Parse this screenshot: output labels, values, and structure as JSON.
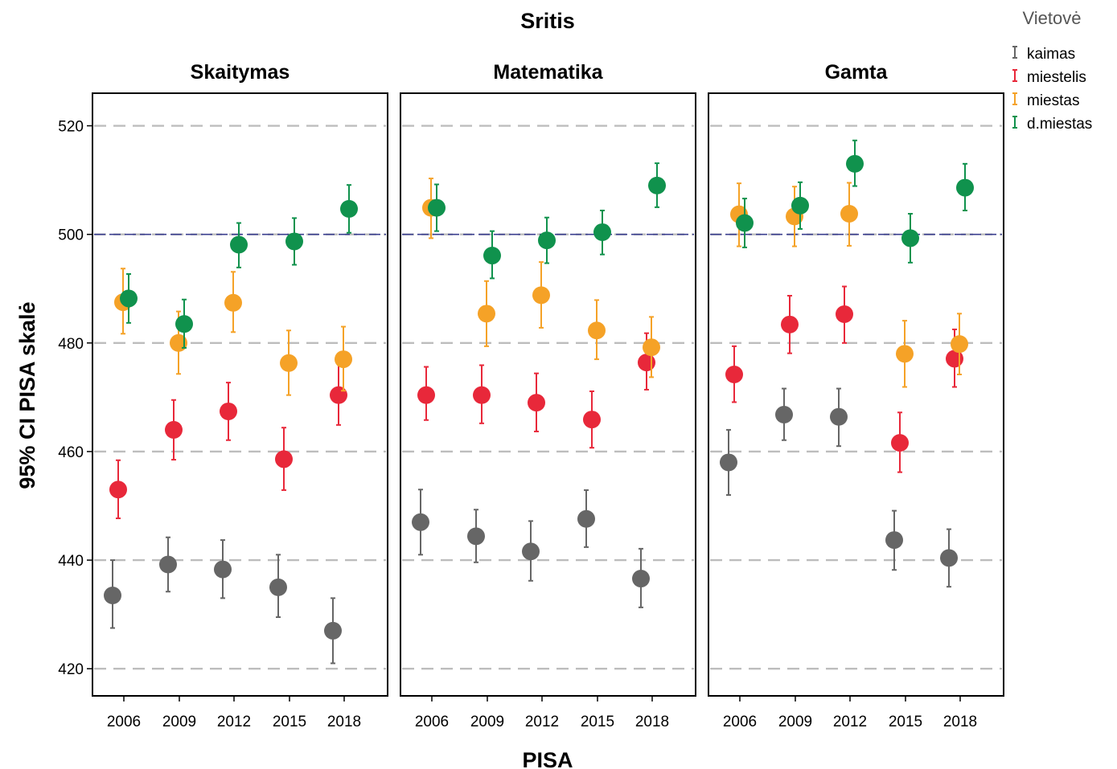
{
  "chart_data": {
    "type": "scatter",
    "title": "Sritis",
    "xlabel": "PISA",
    "ylabel": "95% CI PISA skalė",
    "ylim": [
      415,
      526
    ],
    "yticks": [
      420,
      440,
      460,
      480,
      500,
      520
    ],
    "x_categories": [
      "2006",
      "2009",
      "2012",
      "2015",
      "2018"
    ],
    "reference_line": 500,
    "grid": "horizontal dashed",
    "legend": {
      "title": "Vietovė",
      "placement": "top-right",
      "entries": [
        {
          "name": "kaimas",
          "color": "#666666"
        },
        {
          "name": "miestelis",
          "color": "#e8283a"
        },
        {
          "name": "miestas",
          "color": "#f5a227"
        },
        {
          "name": "d.miestas",
          "color": "#10924d"
        }
      ]
    },
    "panels": [
      {
        "title": "Skaitymas",
        "series": [
          {
            "name": "kaimas",
            "points": [
              {
                "year": "2006",
                "mean": 433.5,
                "low": 427.5,
                "high": 440
              },
              {
                "year": "2009",
                "mean": 439.2,
                "low": 434.2,
                "high": 444.2
              },
              {
                "year": "2012",
                "mean": 438.3,
                "low": 433,
                "high": 443.7
              },
              {
                "year": "2015",
                "mean": 435,
                "low": 429.5,
                "high": 441
              },
              {
                "year": "2018",
                "mean": 427,
                "low": 421,
                "high": 433
              }
            ]
          },
          {
            "name": "miestelis",
            "points": [
              {
                "year": "2006",
                "mean": 453,
                "low": 447.7,
                "high": 458.4
              },
              {
                "year": "2009",
                "mean": 464,
                "low": 458.5,
                "high": 469.5
              },
              {
                "year": "2012",
                "mean": 467.4,
                "low": 462.1,
                "high": 472.7
              },
              {
                "year": "2015",
                "mean": 458.6,
                "low": 452.9,
                "high": 464.4
              },
              {
                "year": "2018",
                "mean": 470.4,
                "low": 464.9,
                "high": 476.3
              }
            ]
          },
          {
            "name": "miestas",
            "points": [
              {
                "year": "2006",
                "mean": 487.5,
                "low": 481.7,
                "high": 493.7
              },
              {
                "year": "2009",
                "mean": 480,
                "low": 474.3,
                "high": 485.8
              },
              {
                "year": "2012",
                "mean": 487.4,
                "low": 482,
                "high": 493.1
              },
              {
                "year": "2015",
                "mean": 476.3,
                "low": 470.4,
                "high": 482.3
              },
              {
                "year": "2018",
                "mean": 477,
                "low": 471.2,
                "high": 483
              }
            ]
          },
          {
            "name": "d.miestas",
            "points": [
              {
                "year": "2006",
                "mean": 488.2,
                "low": 483.7,
                "high": 492.7
              },
              {
                "year": "2009",
                "mean": 483.5,
                "low": 479.1,
                "high": 488
              },
              {
                "year": "2012",
                "mean": 498.1,
                "low": 493.9,
                "high": 502.1
              },
              {
                "year": "2015",
                "mean": 498.7,
                "low": 494.4,
                "high": 503
              },
              {
                "year": "2018",
                "mean": 504.7,
                "low": 500.3,
                "high": 509.1
              }
            ]
          }
        ]
      },
      {
        "title": "Matematika",
        "series": [
          {
            "name": "kaimas",
            "points": [
              {
                "year": "2006",
                "mean": 447,
                "low": 441,
                "high": 453
              },
              {
                "year": "2009",
                "mean": 444.4,
                "low": 439.6,
                "high": 449.3
              },
              {
                "year": "2012",
                "mean": 441.6,
                "low": 436.2,
                "high": 447.2
              },
              {
                "year": "2015",
                "mean": 447.6,
                "low": 442.4,
                "high": 452.9
              },
              {
                "year": "2018",
                "mean": 436.6,
                "low": 431.3,
                "high": 442.1
              }
            ]
          },
          {
            "name": "miestelis",
            "points": [
              {
                "year": "2006",
                "mean": 470.4,
                "low": 465.8,
                "high": 475.6
              },
              {
                "year": "2009",
                "mean": 470.4,
                "low": 465.2,
                "high": 475.9
              },
              {
                "year": "2012",
                "mean": 469,
                "low": 463.7,
                "high": 474.4
              },
              {
                "year": "2015",
                "mean": 465.9,
                "low": 460.7,
                "high": 471.1
              },
              {
                "year": "2018",
                "mean": 476.4,
                "low": 471.4,
                "high": 481.8
              }
            ]
          },
          {
            "name": "miestas",
            "points": [
              {
                "year": "2006",
                "mean": 504.9,
                "low": 499.3,
                "high": 510.3
              },
              {
                "year": "2009",
                "mean": 485.4,
                "low": 479.4,
                "high": 491.4
              },
              {
                "year": "2012",
                "mean": 488.8,
                "low": 482.8,
                "high": 494.9
              },
              {
                "year": "2015",
                "mean": 482.3,
                "low": 477,
                "high": 487.9
              },
              {
                "year": "2018",
                "mean": 479.2,
                "low": 473.7,
                "high": 484.8
              }
            ]
          },
          {
            "name": "d.miestas",
            "points": [
              {
                "year": "2006",
                "mean": 504.9,
                "low": 500.6,
                "high": 509.2
              },
              {
                "year": "2009",
                "mean": 496.1,
                "low": 491.9,
                "high": 500.6
              },
              {
                "year": "2012",
                "mean": 498.9,
                "low": 494.7,
                "high": 503.1
              },
              {
                "year": "2015",
                "mean": 500.4,
                "low": 496.3,
                "high": 504.4
              },
              {
                "year": "2018",
                "mean": 509,
                "low": 505,
                "high": 513.1
              }
            ]
          }
        ]
      },
      {
        "title": "Gamta",
        "series": [
          {
            "name": "kaimas",
            "points": [
              {
                "year": "2006",
                "mean": 458,
                "low": 452,
                "high": 464
              },
              {
                "year": "2009",
                "mean": 466.8,
                "low": 462.1,
                "high": 471.6
              },
              {
                "year": "2012",
                "mean": 466.4,
                "low": 461,
                "high": 471.6
              },
              {
                "year": "2015",
                "mean": 443.7,
                "low": 438.2,
                "high": 449.1
              },
              {
                "year": "2018",
                "mean": 440.4,
                "low": 435.1,
                "high": 445.7
              }
            ]
          },
          {
            "name": "miestelis",
            "points": [
              {
                "year": "2006",
                "mean": 474.2,
                "low": 469.1,
                "high": 479.4
              },
              {
                "year": "2009",
                "mean": 483.4,
                "low": 478.1,
                "high": 488.7
              },
              {
                "year": "2012",
                "mean": 485.3,
                "low": 480,
                "high": 490.4
              },
              {
                "year": "2015",
                "mean": 461.6,
                "low": 456.2,
                "high": 467.2
              },
              {
                "year": "2018",
                "mean": 477.1,
                "low": 471.9,
                "high": 482.5
              }
            ]
          },
          {
            "name": "miestas",
            "points": [
              {
                "year": "2006",
                "mean": 503.7,
                "low": 497.8,
                "high": 509.4
              },
              {
                "year": "2009",
                "mean": 503.3,
                "low": 497.8,
                "high": 508.8
              },
              {
                "year": "2012",
                "mean": 503.8,
                "low": 497.9,
                "high": 509.5
              },
              {
                "year": "2015",
                "mean": 478,
                "low": 471.9,
                "high": 484.1
              },
              {
                "year": "2018",
                "mean": 479.8,
                "low": 474.2,
                "high": 485.4
              }
            ]
          },
          {
            "name": "d.miestas",
            "points": [
              {
                "year": "2006",
                "mean": 502.1,
                "low": 497.6,
                "high": 506.6
              },
              {
                "year": "2009",
                "mean": 505.3,
                "low": 501,
                "high": 509.6
              },
              {
                "year": "2012",
                "mean": 513,
                "low": 508.9,
                "high": 517.3
              },
              {
                "year": "2015",
                "mean": 499.3,
                "low": 494.8,
                "high": 503.8
              },
              {
                "year": "2018",
                "mean": 508.6,
                "low": 504.4,
                "high": 513
              }
            ]
          }
        ]
      }
    ]
  }
}
